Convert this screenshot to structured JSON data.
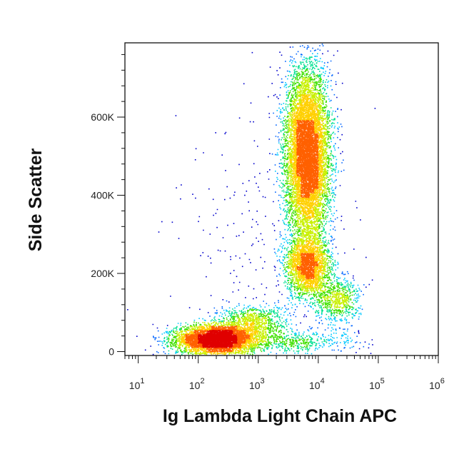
{
  "chart_data": {
    "type": "scatter",
    "subtype": "flow-cytometry-density-dot-plot",
    "title": "",
    "xlabel": "Ig Lambda Light Chain APC",
    "ylabel": "Side Scatter",
    "x_scale": "log",
    "xlim": [
      6,
      1000000
    ],
    "ylim": [
      -10000,
      790000
    ],
    "x_ticks": [
      {
        "value": 10,
        "base": "10",
        "exp": "1"
      },
      {
        "value": 100,
        "base": "10",
        "exp": "2"
      },
      {
        "value": 1000,
        "base": "10",
        "exp": "3"
      },
      {
        "value": 10000,
        "base": "10",
        "exp": "4"
      },
      {
        "value": 100000,
        "base": "10",
        "exp": "5"
      },
      {
        "value": 1000000,
        "base": "10",
        "exp": "6"
      }
    ],
    "y_ticks": [
      {
        "value": 0,
        "label": "0"
      },
      {
        "value": 200000,
        "label": "200K"
      },
      {
        "value": 400000,
        "label": "400K"
      },
      {
        "value": 600000,
        "label": "600K"
      }
    ],
    "colormap": [
      "#0000cc",
      "#0064ff",
      "#00c8ff",
      "#00e090",
      "#40e000",
      "#c8f000",
      "#ffd000",
      "#ff6000",
      "#e00000"
    ],
    "populations": [
      {
        "x_center": 200,
        "y_center": 32000,
        "x_spread_decades": 0.33,
        "y_spread": 18000,
        "weight": 5200
      },
      {
        "x_center": 800,
        "y_center": 75000,
        "x_spread_decades": 0.3,
        "y_spread": 22000,
        "weight": 900
      },
      {
        "x_center": 6500,
        "y_center": 500000,
        "x_spread_decades": 0.18,
        "y_spread": 110000,
        "weight": 9000
      },
      {
        "x_center": 6500,
        "y_center": 220000,
        "x_spread_decades": 0.18,
        "y_spread": 40000,
        "weight": 2600
      },
      {
        "x_center": 20000,
        "y_center": 130000,
        "x_spread_decades": 0.18,
        "y_spread": 30000,
        "weight": 700
      },
      {
        "x_center": 4000,
        "y_center": 25000,
        "x_spread_decades": 0.5,
        "y_spread": 15000,
        "weight": 500
      },
      {
        "x_center": 1200,
        "y_center": 250000,
        "x_spread_decades": 0.7,
        "y_spread": 200000,
        "weight": 250
      }
    ]
  }
}
